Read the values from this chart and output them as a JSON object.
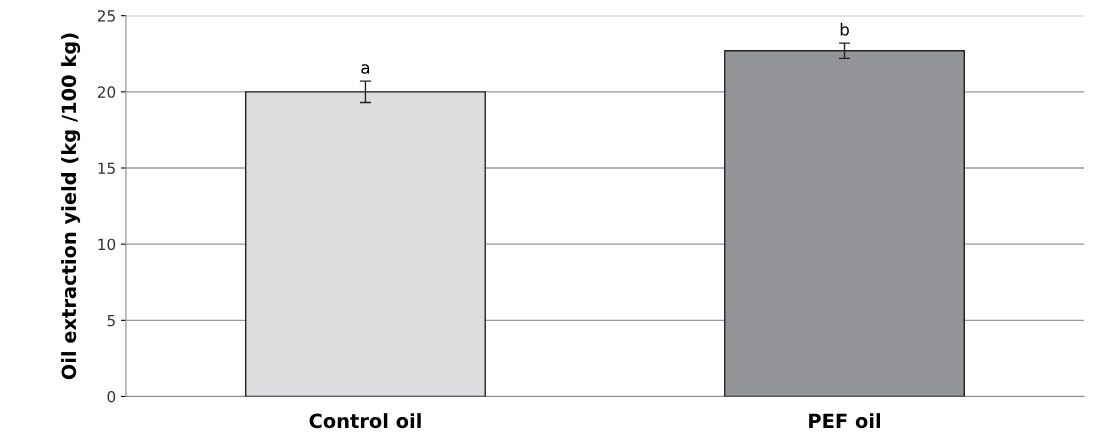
{
  "chart_data": {
    "type": "bar",
    "ylabel": "Oil extraction yield (kg /100 kg)",
    "categories": [
      "Control oil",
      "PEF oil"
    ],
    "values": [
      20.0,
      22.7
    ],
    "colors": [
      "#dcdddf",
      "#949599"
    ],
    "errors": [
      0.7,
      0.5
    ],
    "ylim": [
      0,
      25
    ],
    "yticks": [
      0,
      5,
      10,
      15,
      20,
      25
    ],
    "grid": "y",
    "annotations": [
      {
        "text": "a",
        "x": "Control oil",
        "y": 20.7
      },
      {
        "text": "b",
        "x": "PEF oil",
        "y": 23.2
      }
    ]
  }
}
